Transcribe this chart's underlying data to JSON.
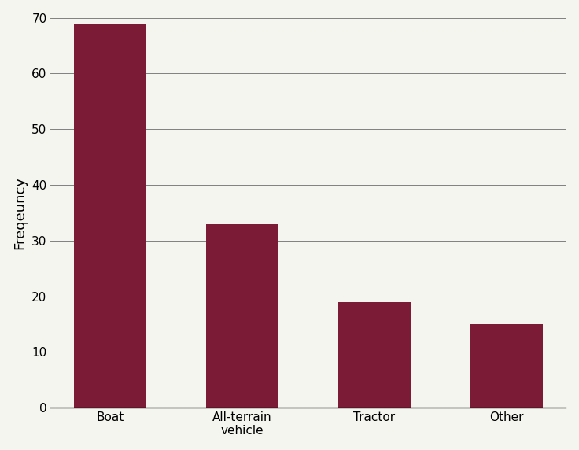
{
  "categories": [
    "Boat",
    "All-terrain\nvehicle",
    "Tractor",
    "Other"
  ],
  "values": [
    69,
    33,
    19,
    15
  ],
  "bar_color": "#7B1B35",
  "ylabel": "Freqeuncy",
  "ylim": [
    0,
    70
  ],
  "yticks": [
    0,
    10,
    20,
    30,
    40,
    50,
    60,
    70
  ],
  "background_color": "#f5f5f0",
  "figure_background": "#f5f5f0",
  "ylabel_fontsize": 13,
  "tick_fontsize": 11,
  "bar_width": 0.55
}
